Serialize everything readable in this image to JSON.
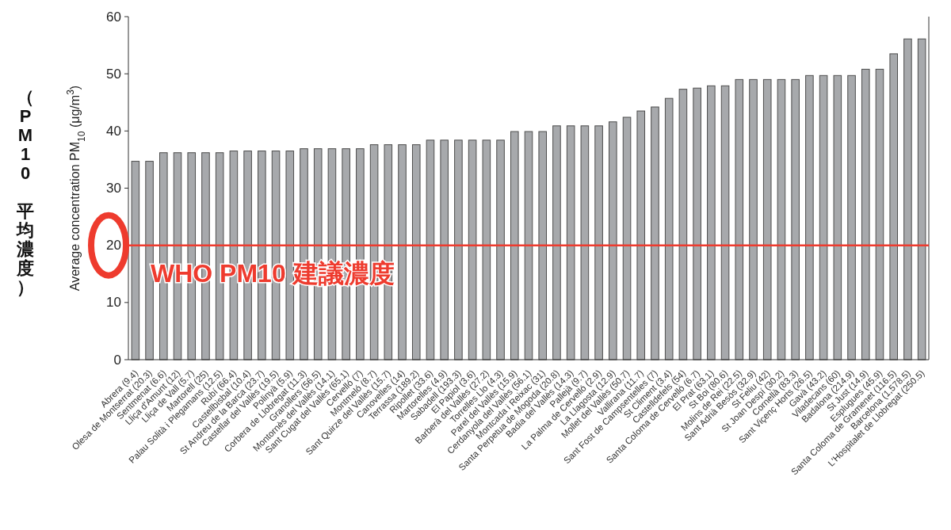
{
  "chart_data": {
    "type": "bar",
    "ylabel": "Average concentration PM$_{10}$ (μg/m$^{3}$)",
    "categories": [
      "Abrera (9.4)",
      "Olesa de Montserrat (20.3)",
      "Sentmenat (6.6)",
      "Lliça d'Amunt (12)",
      "Lliça de Vall (5.7)",
      "Martorell (25)",
      "Palau Solità i Plegamans (12.5)",
      "Rubí (66.4)",
      "Castellbisbal (10.4)",
      "St Andreu de la Barca (23.7)",
      "Castellar del Vallès (19.5)",
      "Polinyà (5.9)",
      "Corbera de Llobregat (11.3)",
      "Granollers (56.5)",
      "Montornès del Vallès (14.1)",
      "Sant Cugat del Vallès (65.1)",
      "Cervelló (7)",
      "Montmeló (8.7)",
      "Sant Quirze del Vallès (15.7)",
      "Canovelles (14)",
      "Terrassa (189.2)",
      "Ripollet (33.6)",
      "Martorelles (4.9)",
      "Sabadell (193.3)",
      "El Papiol (3.6)",
      "Barberà del Vallès (27.2)",
      "Torrelles Llo (4.3)",
      "Parel del Vallès (15.9)",
      "Cerdanyola del Vallès (56.1)",
      "Montcada i Reixac (31)",
      "Santa Perpetua de Mogoda (20.8)",
      "Badia del Vallès (14.3)",
      "Pallejà (9.7)",
      "La Palma de Cervelló (2.9)",
      "La Llagosta (12.9)",
      "Mollet del Vallès (50.7)",
      "Vallirana (11.7)",
      "Sant Fost de Campsentelles (7)",
      "St Climent (3.4)",
      "Castelldefels (54)",
      "Santa Coloma de Cervelló (6.7)",
      "El Prat (63.1)",
      "St Boi (80.6)",
      "Molins de Rei (22.5)",
      "Sant Adrià Besòs (32.9)",
      "St Feliu (42)",
      "St Joan Despí (30.2)",
      "Cornellà (83.3)",
      "Sant Viçenç Horts (26.5)",
      "Gavà (43.2)",
      "Viladecans (60)",
      "Badalona (214.9)",
      "St Just (14.9)",
      "Esplugues (45.9)",
      "Santa Coloma de Gramenet (116.5)",
      "Barcelona (1,578.5)",
      "L'Hospitalet de Llobregat (250.5)"
    ],
    "values": [
      34.7,
      34.7,
      36.2,
      36.2,
      36.2,
      36.2,
      36.2,
      36.5,
      36.5,
      36.5,
      36.5,
      36.5,
      36.9,
      36.9,
      36.9,
      36.9,
      36.9,
      37.6,
      37.6,
      37.6,
      37.6,
      38.4,
      38.4,
      38.4,
      38.4,
      38.4,
      38.4,
      39.9,
      39.9,
      39.9,
      40.9,
      40.9,
      40.9,
      40.9,
      41.6,
      42.4,
      43.5,
      44.2,
      45.7,
      47.3,
      47.5,
      47.9,
      47.9,
      49.0,
      49.0,
      49.0,
      49.0,
      49.0,
      49.7,
      49.7,
      49.7,
      49.7,
      50.8,
      50.8,
      53.5,
      56.1,
      56.1
    ],
    "color": "#a7a9ac",
    "ylim": [
      0,
      60
    ],
    "yticks": [
      0,
      10,
      20,
      30,
      40,
      50,
      60
    ],
    "grid": false,
    "ref_lines": [
      {
        "axis": "y",
        "value": 20,
        "label": "WHO PM10 建議濃度",
        "color": "#ee3b2e"
      }
    ],
    "annotations": [
      "（PM10 平均濃度）"
    ]
  }
}
